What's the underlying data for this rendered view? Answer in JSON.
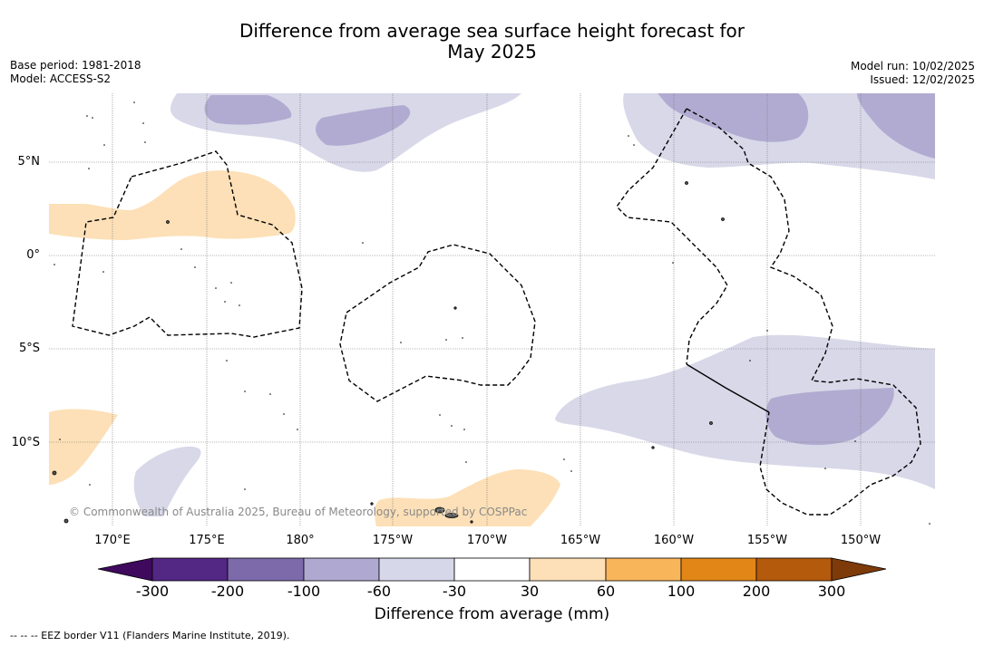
{
  "header": {
    "title_line1": "Difference from average sea surface height forecast for",
    "title_line2": "May 2025",
    "base_period": "Base period: 1981-2018",
    "model": "Model: ACCESS-S2",
    "model_run": "Model run: 10/02/2025",
    "issued": "Issued: 12/02/2025"
  },
  "map": {
    "lat_labels": [
      "5°N",
      "0°",
      "5°S",
      "10°S"
    ],
    "lon_labels": [
      "170°E",
      "175°E",
      "180°",
      "175°W",
      "170°W",
      "165°W",
      "160°W",
      "155°W",
      "150°W"
    ],
    "copyright": "© Commonwealth of Australia 2025, Bureau of Meteorology, supported by COSPPac",
    "colors": {
      "below_30_60": "#d8d8e9",
      "below_60_100": "#b1abd1",
      "above_30_60": "#fde0b7",
      "land": "#555555",
      "eez_border": "#000000"
    }
  },
  "colorbar": {
    "tick_labels": [
      "-300",
      "-200",
      "-100",
      "-60",
      "-30",
      "30",
      "60",
      "100",
      "200",
      "300"
    ],
    "colors": [
      "#3f0a5e",
      "#532784",
      "#7c6aab",
      "#afa9d2",
      "#d7d7ea",
      "#ffffff",
      "#fde0b7",
      "#f8b55a",
      "#e28617",
      "#b45a0c",
      "#7e3a08"
    ],
    "title": "Difference from average (mm)"
  },
  "footnote": "-- -- -- EEZ border V11 (Flanders Marine Institute, 2019)."
}
